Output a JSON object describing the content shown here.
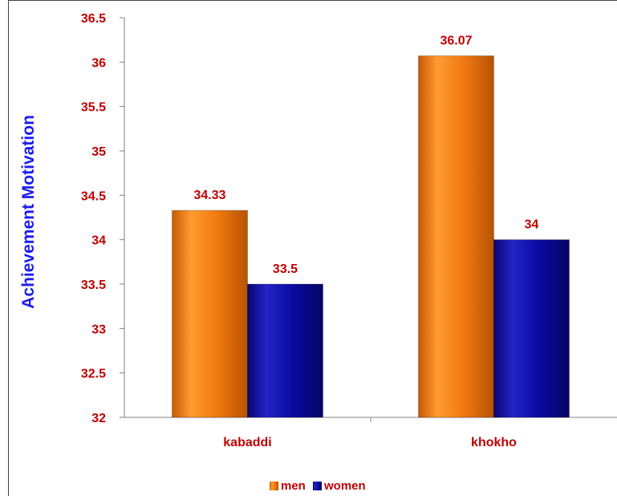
{
  "colors": {
    "men": "#F07A10",
    "women": "#0A0AA0",
    "tick_text": "#C00000",
    "ylabel_text": "#1C1CF0",
    "category_text": "#C00000",
    "legend_text": "#C00000",
    "axis": "#808080"
  },
  "chart_data": {
    "type": "bar",
    "title": "",
    "xlabel": "",
    "ylabel": "Achievement Motivation",
    "categories": [
      "kabaddi",
      "khokho"
    ],
    "series": [
      {
        "name": "men",
        "values": [
          34.33,
          36.07
        ],
        "labels": [
          "34.33",
          "36.07"
        ]
      },
      {
        "name": "women",
        "values": [
          33.5,
          34
        ],
        "labels": [
          "33.5",
          "34"
        ]
      }
    ],
    "ylim": [
      32,
      36.5
    ],
    "yticks": [
      32,
      32.5,
      33,
      33.5,
      34,
      34.5,
      35,
      35.5,
      36,
      36.5
    ],
    "ytick_labels": [
      "32",
      "32.5",
      "33",
      "33.5",
      "34",
      "34.5",
      "35",
      "35.5",
      "36",
      "36.5"
    ],
    "grid": false,
    "legend": "bottom"
  }
}
